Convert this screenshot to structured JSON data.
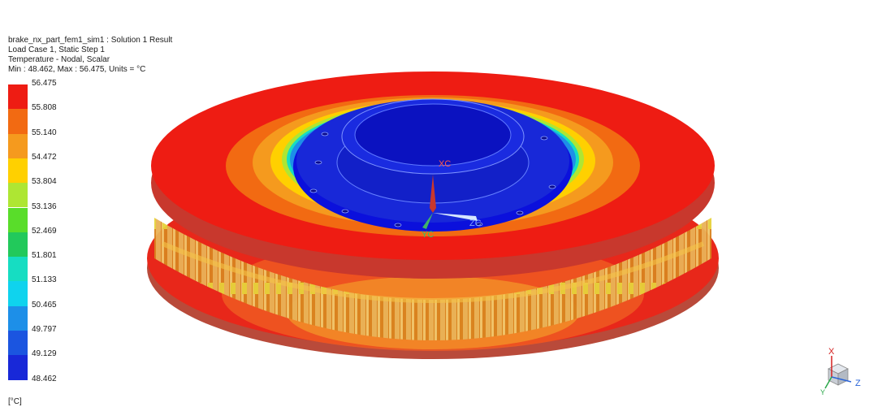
{
  "header": {
    "title": "brake_nx_part_fem1_sim1 : Solution 1 Result",
    "load_case": "Load Case 1, Static Step 1",
    "result_type": "Temperature - Nodal, Scalar",
    "range": "Min : 48.462, Max : 56.475, Units = °C"
  },
  "legend": {
    "values": [
      "56.475",
      "55.808",
      "55.140",
      "54.472",
      "53.804",
      "53.136",
      "52.469",
      "51.801",
      "51.133",
      "50.465",
      "49.797",
      "49.129",
      "48.462"
    ],
    "colors": [
      "#ee1c13",
      "#f26a12",
      "#f59a1e",
      "#ffd000",
      "#aee633",
      "#59dd2a",
      "#22c95b",
      "#16ddc2",
      "#0fd3ee",
      "#1d8fe8",
      "#1b55e0",
      "#1828d8",
      "#0b10dc"
    ],
    "units": "[°C]"
  },
  "csys": {
    "xc": "XC",
    "yc": "YC",
    "zc": "ZC"
  },
  "triad": {
    "x": "X",
    "y": "Y",
    "z": "Z"
  }
}
